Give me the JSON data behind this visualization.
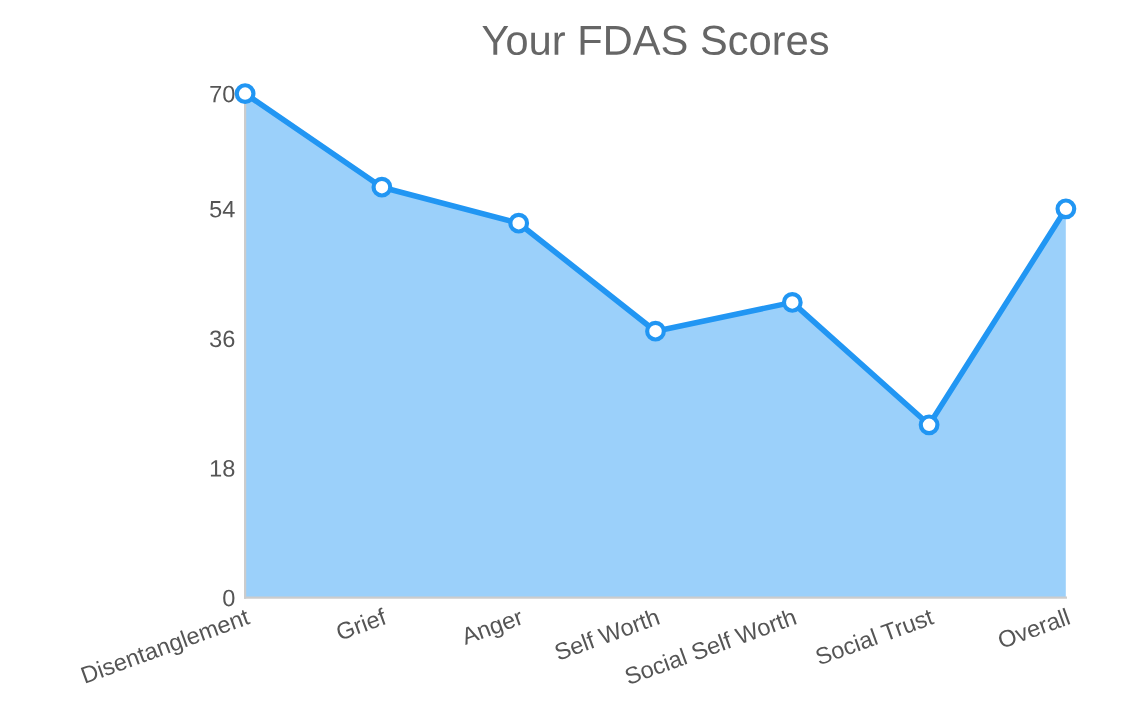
{
  "chart_data": {
    "type": "area",
    "title": "Your FDAS Scores",
    "categories": [
      "Disentanglement",
      "Grief",
      "Anger",
      "Self Worth",
      "Social Self Worth",
      "Social Trust",
      "Overall"
    ],
    "values": [
      70,
      57,
      52,
      37,
      41,
      24,
      54
    ],
    "color": "#2196f3",
    "ylim": [
      0,
      70
    ],
    "yticks": [
      0,
      18,
      36,
      54,
      70
    ],
    "marker": "circle",
    "grid": false
  }
}
